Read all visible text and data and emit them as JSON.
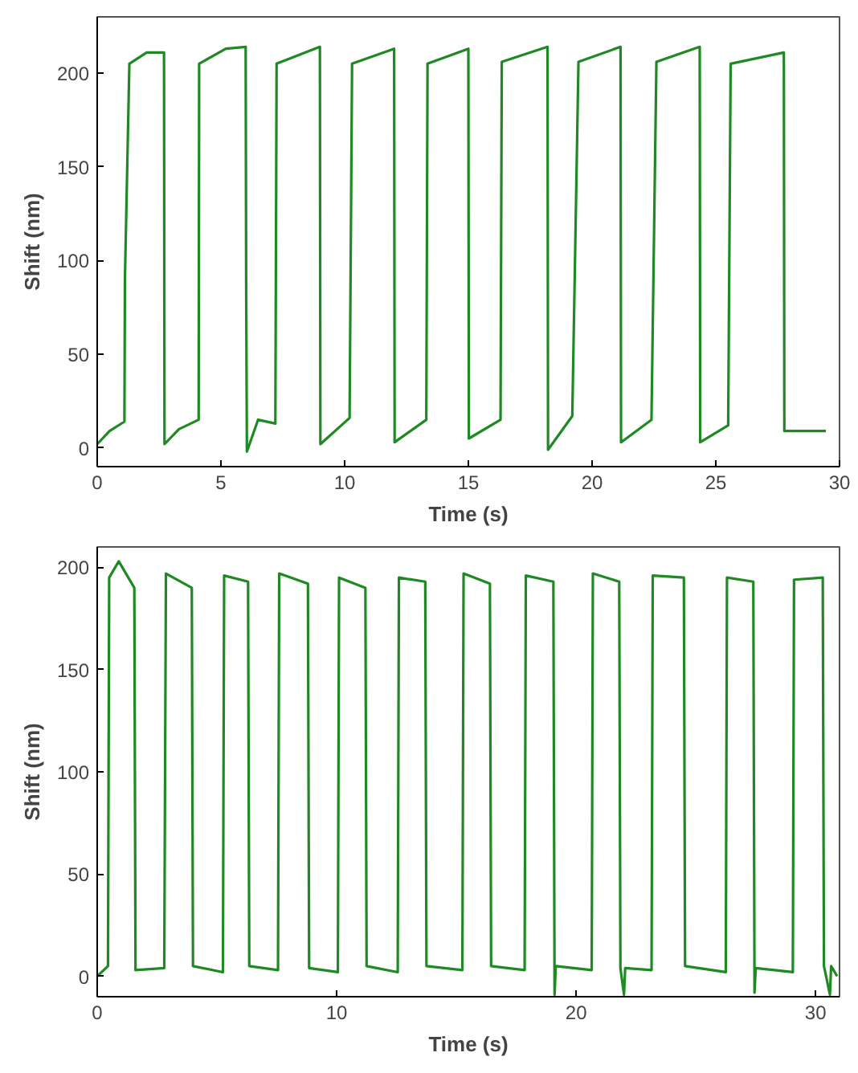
{
  "chart_data": [
    {
      "type": "line",
      "xlabel": "Time (s)",
      "ylabel": "Shift (nm)",
      "xlim": [
        0,
        30
      ],
      "ylim": [
        -10,
        230
      ],
      "xticks": [
        0,
        5,
        10,
        15,
        20,
        25,
        30
      ],
      "yticks": [
        0,
        50,
        100,
        150,
        200
      ],
      "grid": false,
      "series": [
        {
          "color": "#1f8a24",
          "x": [
            0,
            0.5,
            1.1,
            1.12,
            1.3,
            2.0,
            2.7,
            2.72,
            3.3,
            4.1,
            4.12,
            5.2,
            6.0,
            6.02,
            6.05,
            6.5,
            7.2,
            7.25,
            9.0,
            9.02,
            10.2,
            10.3,
            12.0,
            12.02,
            13.3,
            13.35,
            15.0,
            15.02,
            16.3,
            16.35,
            18.2,
            18.22,
            19.2,
            19.45,
            21.15,
            21.17,
            22.4,
            22.6,
            24.35,
            24.37,
            25.5,
            25.6,
            27.75,
            27.77,
            29.45
          ],
          "values": [
            2,
            9,
            14,
            90,
            205,
            211,
            211,
            2,
            10,
            15,
            205,
            213,
            214,
            88,
            -2,
            15,
            13,
            205,
            214,
            2,
            16,
            205,
            213,
            3,
            15,
            205,
            213,
            5,
            15,
            206,
            214,
            -1,
            17,
            206,
            214,
            3,
            15,
            206,
            214,
            3,
            12,
            205,
            211,
            9,
            9
          ]
        }
      ]
    },
    {
      "type": "line",
      "xlabel": "Time (s)",
      "ylabel": "Shift (nm)",
      "xlim": [
        0,
        31
      ],
      "ylim": [
        -10,
        210
      ],
      "xticks": [
        0,
        10,
        20,
        30
      ],
      "yticks": [
        0,
        50,
        100,
        150,
        200
      ],
      "grid": false,
      "series": [
        {
          "color": "#1f8a24",
          "x": [
            0,
            0.45,
            0.5,
            0.9,
            1.55,
            1.6,
            2.8,
            2.87,
            3.95,
            4.0,
            5.25,
            5.3,
            6.3,
            6.35,
            7.55,
            7.6,
            8.8,
            8.85,
            10.05,
            10.1,
            11.2,
            11.25,
            12.55,
            12.6,
            13.7,
            13.75,
            15.25,
            15.3,
            16.4,
            16.45,
            17.85,
            17.9,
            19.05,
            19.1,
            19.15,
            20.65,
            20.7,
            21.8,
            21.85,
            22.0,
            22.05,
            23.15,
            23.2,
            24.5,
            24.55,
            26.25,
            26.3,
            27.4,
            27.45,
            27.5,
            29.05,
            29.1,
            30.3,
            30.35,
            30.6,
            30.65,
            30.9
          ],
          "values": [
            0,
            5,
            195,
            203,
            190,
            3,
            4,
            197,
            190,
            5,
            2,
            196,
            193,
            5,
            3,
            197,
            192,
            4,
            2,
            195,
            190,
            5,
            2,
            195,
            193,
            5,
            3,
            197,
            192,
            5,
            3,
            196,
            193,
            -9,
            5,
            3,
            197,
            193,
            4,
            -9,
            4,
            3,
            196,
            195,
            5,
            2,
            195,
            193,
            -8,
            4,
            2,
            194,
            195,
            5,
            -9,
            5,
            0
          ]
        }
      ]
    }
  ]
}
